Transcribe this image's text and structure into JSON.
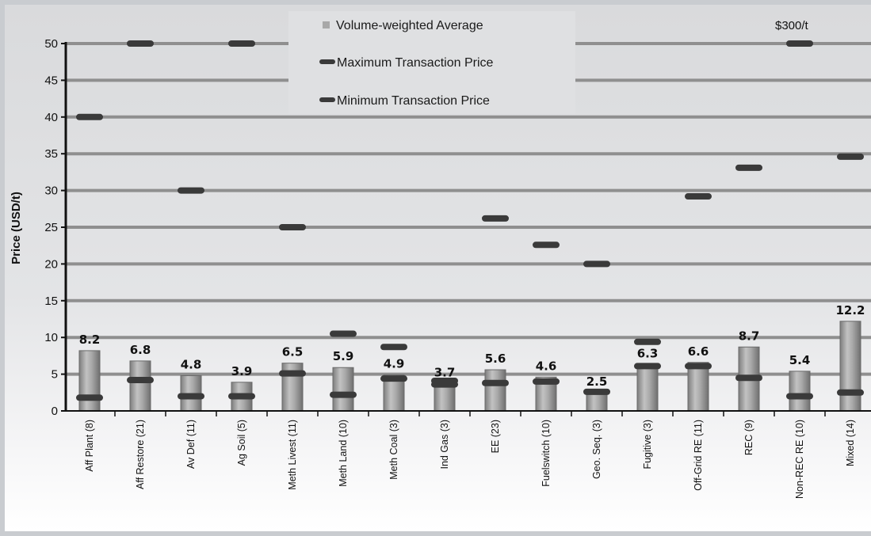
{
  "chart_data": {
    "type": "bar",
    "title": "",
    "xlabel": "",
    "ylabel": "Price (USD/t)",
    "ylim": [
      0,
      50
    ],
    "yticks": [
      0,
      5,
      10,
      15,
      20,
      25,
      30,
      35,
      40,
      45,
      50
    ],
    "grid": true,
    "legend_position": "top-center",
    "categories": [
      "Aff Plant (8)",
      "Aff Restore (21)",
      "Av Def (11)",
      "Ag Soil (5)",
      "Meth Livest (11)",
      "Meth Land (10)",
      "Meth Coal (3)",
      "Ind Gas (3)",
      "EE (23)",
      "Fuelswitch (10)",
      "Geo. Seq. (3)",
      "Fugitive (3)",
      "Off-Grid RE (11)",
      "REC (9)",
      "Non-REC RE (10)",
      "Mixed (14)"
    ],
    "series": [
      {
        "name": "Volume-weighted Average",
        "values": [
          8.2,
          6.8,
          4.8,
          3.9,
          6.5,
          5.9,
          4.9,
          3.7,
          5.6,
          4.6,
          2.5,
          6.3,
          6.6,
          8.7,
          5.4,
          12.2
        ]
      },
      {
        "name": "Maximum Transaction Price",
        "values": [
          40,
          50,
          30,
          50,
          25,
          10.5,
          8.7,
          4.1,
          26.2,
          22.6,
          20,
          9.4,
          29.2,
          33.1,
          50,
          34.6
        ]
      },
      {
        "name": "Minimum Transaction Price",
        "values": [
          1.8,
          4.2,
          2,
          2,
          5.1,
          2.2,
          4.4,
          3.6,
          3.8,
          4,
          2.6,
          6.1,
          6.1,
          4.5,
          2,
          2.5
        ]
      }
    ],
    "value_labels": [
      "8.2",
      "6.8",
      "4.8",
      "3.9",
      "6.5",
      "5.9",
      "4.9",
      "3.7",
      "5.6",
      "4.6",
      "2.5",
      "6.3",
      "6.6",
      "8.7",
      "5.4",
      "12.2"
    ],
    "annotations": [
      {
        "category": "Non-REC RE (10)",
        "text": "$300/t"
      }
    ],
    "colors": {
      "bar": "#9a9a9a",
      "marker": "#3a3a3a",
      "grid": "#8f8f8f"
    }
  }
}
